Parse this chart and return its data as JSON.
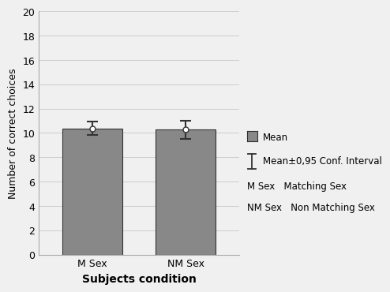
{
  "categories": [
    "M Sex",
    "NM Sex"
  ],
  "means": [
    10.38,
    10.26
  ],
  "ci_errors": [
    0.55,
    0.72
  ],
  "bar_color": "#888888",
  "bar_edge_color": "#333333",
  "bar_width": 0.45,
  "ylim": [
    0,
    20
  ],
  "yticks": [
    0,
    2,
    4,
    6,
    8,
    10,
    12,
    14,
    16,
    18,
    20
  ],
  "ylabel": "Number of correct choices",
  "xlabel": "Subjects condition",
  "grid_color": "#cccccc",
  "background_color": "#f0f0f0",
  "legend_mean_label": "Mean",
  "legend_ci_label": "Mean±0,95 Conf. Interval",
  "legend_line1": "M Sex   Matching Sex",
  "legend_line2": "NM Sex   Non Matching Sex",
  "mean_dot_color": "white",
  "mean_dot_edge_color": "#333333",
  "x_positions": [
    0.35,
    1.05
  ]
}
